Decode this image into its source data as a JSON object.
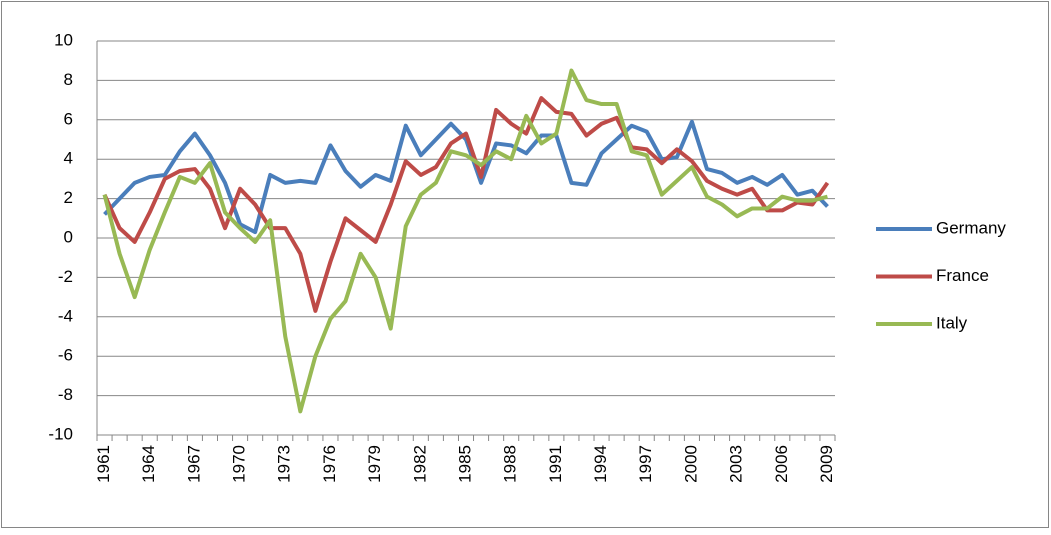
{
  "chart_data": {
    "type": "line",
    "categories": [
      "1961",
      null,
      null,
      "1964",
      null,
      null,
      "1967",
      null,
      null,
      "1970",
      null,
      null,
      "1973",
      null,
      null,
      "1976",
      null,
      null,
      "1979",
      null,
      null,
      "1982",
      null,
      null,
      "1985",
      null,
      null,
      "1988",
      null,
      null,
      "1991",
      null,
      null,
      "1994",
      null,
      null,
      "1997",
      null,
      null,
      "2000",
      null,
      null,
      "2003",
      null,
      null,
      "2006",
      null,
      null,
      "2009"
    ],
    "series": [
      {
        "name": "Germany",
        "color": "#4a7ebb",
        "values": [
          1.2,
          2.0,
          2.8,
          3.1,
          3.2,
          4.4,
          5.3,
          4.2,
          2.8,
          0.7,
          0.3,
          3.2,
          2.8,
          2.9,
          2.8,
          4.7,
          3.4,
          2.6,
          3.2,
          2.9,
          5.7,
          4.2,
          5.0,
          5.8,
          5.0,
          2.8,
          4.8,
          4.7,
          4.3,
          5.2,
          5.2,
          2.8,
          2.7,
          4.3,
          5.0,
          5.7,
          5.4,
          4.0,
          4.1,
          5.9,
          3.5,
          3.3,
          2.8,
          3.1,
          2.7,
          3.2,
          2.2,
          2.4,
          1.6
        ]
      },
      {
        "name": "France",
        "color": "#be4b48",
        "values": [
          2.2,
          0.5,
          -0.2,
          1.3,
          3.0,
          3.4,
          3.5,
          2.5,
          0.5,
          2.5,
          1.7,
          0.5,
          0.5,
          -0.8,
          -3.7,
          -1.2,
          1.0,
          0.4,
          -0.2,
          1.7,
          3.9,
          3.2,
          3.6,
          4.8,
          5.3,
          3.1,
          6.5,
          5.8,
          5.3,
          7.1,
          6.4,
          6.3,
          5.2,
          5.8,
          6.1,
          4.6,
          4.5,
          3.8,
          4.5,
          3.9,
          2.9,
          2.5,
          2.2,
          2.5,
          1.4,
          1.4,
          1.8,
          1.7,
          2.8
        ]
      },
      {
        "name": "Italy",
        "color": "#98b954",
        "values": [
          2.2,
          -0.8,
          -3.0,
          -0.6,
          1.3,
          3.1,
          2.8,
          3.8,
          1.3,
          0.5,
          -0.2,
          0.9,
          -5.0,
          -8.8,
          -6.0,
          -4.1,
          -3.2,
          -0.8,
          -2.0,
          -4.6,
          0.6,
          2.2,
          2.8,
          4.4,
          4.2,
          3.7,
          4.4,
          4.0,
          6.2,
          4.8,
          5.3,
          8.5,
          7.0,
          6.8,
          6.8,
          4.4,
          4.2,
          2.2,
          2.9,
          3.6,
          2.1,
          1.7,
          1.1,
          1.5,
          1.5,
          2.1,
          1.9,
          1.9,
          2.1
        ]
      }
    ],
    "ylim": [
      -10,
      10
    ],
    "yticks": [
      -10,
      -8,
      -6,
      -4,
      -2,
      0,
      2,
      4,
      6,
      8,
      10
    ],
    "grid": true,
    "legend": "right"
  }
}
